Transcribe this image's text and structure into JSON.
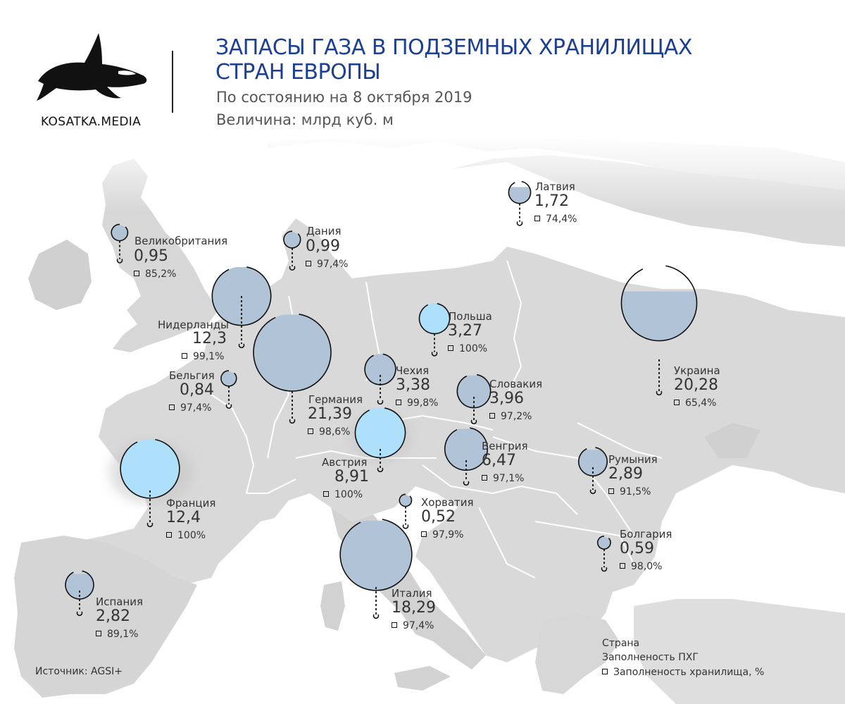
{
  "header": {
    "brand": "KOSATKA.MEDIA",
    "title_line1": "ЗАПАСЫ ГАЗА В ПОДЗЕМНЫХ ХРАНИЛИЩАХ",
    "title_line2": "СТРАН ЕВРОПЫ",
    "subtitle_date": "По состоянию на  8 октября 2019",
    "subtitle_unit": "Величина: млрд куб. м"
  },
  "countries": [
    {
      "id": "uk",
      "name": "Великобритания",
      "value": "0,95",
      "value_num": 0.95,
      "fill": "85,2%",
      "fill_num": 85.2
    },
    {
      "id": "denmark",
      "name": "Дания",
      "value": "0,99",
      "value_num": 0.99,
      "fill": "97,4%",
      "fill_num": 97.4
    },
    {
      "id": "latvia",
      "name": "Латвия",
      "value": "1,72",
      "value_num": 1.72,
      "fill": "74,4%",
      "fill_num": 74.4
    },
    {
      "id": "netherlands",
      "name": "Нидерланды",
      "value": "12,3",
      "value_num": 12.3,
      "fill": "99,1%",
      "fill_num": 99.1
    },
    {
      "id": "belgium",
      "name": "Бельгия",
      "value": "0,84",
      "value_num": 0.84,
      "fill": "97,4%",
      "fill_num": 97.4
    },
    {
      "id": "germany",
      "name": "Германия",
      "value": "21,39",
      "value_num": 21.39,
      "fill": "98,6%",
      "fill_num": 98.6
    },
    {
      "id": "poland",
      "name": "Польша",
      "value": "3,27",
      "value_num": 3.27,
      "fill": "100%",
      "fill_num": 100
    },
    {
      "id": "czechia",
      "name": "Чехия",
      "value": "3,38",
      "value_num": 3.38,
      "fill": "99,8%",
      "fill_num": 99.8
    },
    {
      "id": "slovakia",
      "name": "Словакия",
      "value": "3,96",
      "value_num": 3.96,
      "fill": "97,2%",
      "fill_num": 97.2
    },
    {
      "id": "ukraine",
      "name": "Украина",
      "value": "20,28",
      "value_num": 20.28,
      "fill": "65,4%",
      "fill_num": 65.4
    },
    {
      "id": "austria",
      "name": "Австрия",
      "value": "8,91",
      "value_num": 8.91,
      "fill": "100%",
      "fill_num": 100
    },
    {
      "id": "hungary",
      "name": "Венгрия",
      "value": "6,47",
      "value_num": 6.47,
      "fill": "97,1%",
      "fill_num": 97.1
    },
    {
      "id": "france",
      "name": "Франция",
      "value": "12,4",
      "value_num": 12.4,
      "fill": "100%",
      "fill_num": 100
    },
    {
      "id": "croatia",
      "name": "Хорватия",
      "value": "0,52",
      "value_num": 0.52,
      "fill": "97,9%",
      "fill_num": 97.9
    },
    {
      "id": "romania",
      "name": "Румыния",
      "value": "2,89",
      "value_num": 2.89,
      "fill": "91,5%",
      "fill_num": 91.5
    },
    {
      "id": "bulgaria",
      "name": "Болгария",
      "value": "0,59",
      "value_num": 0.59,
      "fill": "98,0%",
      "fill_num": 98.0
    },
    {
      "id": "italy",
      "name": "Италия",
      "value": "18,29",
      "value_num": 18.29,
      "fill": "97,4%",
      "fill_num": 97.4
    },
    {
      "id": "spain",
      "name": "Испания",
      "value": "2,82",
      "value_num": 2.82,
      "fill": "89,1%",
      "fill_num": 89.1
    }
  ],
  "legend": {
    "country": "Страна",
    "value": "Заполненость ПХГ",
    "pct": "Заполненость хранилища, %"
  },
  "source": "Источник: AGSI+",
  "colors": {
    "title": "#1b3f93",
    "bubble_full": "#aee0fb",
    "bubble_partial": "#b1c3d6",
    "land": "#d9d9d9",
    "land_dark": "#c9c9c9",
    "sea": "#ffffff"
  }
}
